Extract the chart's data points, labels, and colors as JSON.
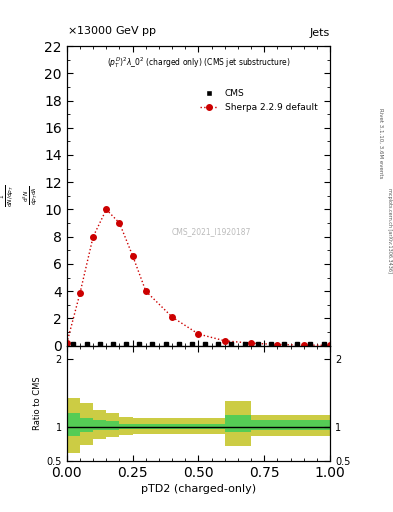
{
  "title_top": "13000 GeV pp",
  "title_right": "Jets",
  "plot_title": "$(p_T^D)^2\\lambda\\_0^2$ (charged only) (CMS jet substructure)",
  "xlabel": "pTD2 (charged-only)",
  "ylabel_main_lines": [
    "mathrm d^2N",
    "mathrm d p_T mathrm d lambda",
    "",
    "1",
    "mathrm d N / mathrm d p_T"
  ],
  "ylabel_ratio": "Ratio to CMS",
  "right_label_top": "Rivet 3.1.10, 3.6M events",
  "right_label_bot": "mcplots.cern.ch [arXiv:1306.3436]",
  "watermark": "CMS_2021_I1920187",
  "cms_label": "CMS",
  "sherpa_label": "Sherpa 2.2.9 default",
  "main_xlim": [
    0.0,
    1.0
  ],
  "main_ylim": [
    0,
    22
  ],
  "main_yticks": [
    0,
    2,
    4,
    6,
    8,
    10,
    12,
    14,
    16,
    18,
    20,
    22
  ],
  "ratio_xlim": [
    0.0,
    1.0
  ],
  "ratio_ylim": [
    0.5,
    2.2
  ],
  "ratio_yticks": [
    0.5,
    1.0,
    2.0
  ],
  "xticks": [
    0.0,
    0.25,
    0.5,
    0.75,
    1.0
  ],
  "sherpa_x": [
    0.0,
    0.05,
    0.1,
    0.15,
    0.2,
    0.25,
    0.3,
    0.4,
    0.5,
    0.6,
    0.7,
    0.8,
    0.9,
    1.0
  ],
  "sherpa_y": [
    0.18,
    3.85,
    8.0,
    10.0,
    9.0,
    6.6,
    4.0,
    2.1,
    0.85,
    0.35,
    0.18,
    0.08,
    0.04,
    0.02
  ],
  "cms_x": [
    0.025,
    0.075,
    0.125,
    0.175,
    0.225,
    0.275,
    0.325,
    0.375,
    0.425,
    0.475,
    0.525,
    0.575,
    0.625,
    0.675,
    0.725,
    0.775,
    0.825,
    0.875,
    0.925,
    0.975
  ],
  "cms_y": [
    0.12,
    0.12,
    0.12,
    0.12,
    0.12,
    0.12,
    0.12,
    0.12,
    0.12,
    0.12,
    0.12,
    0.12,
    0.12,
    0.12,
    0.12,
    0.12,
    0.12,
    0.12,
    0.12,
    0.12
  ],
  "ratio_band_edges": [
    0.0,
    0.05,
    0.1,
    0.15,
    0.2,
    0.25,
    0.3,
    0.35,
    0.4,
    0.45,
    0.5,
    0.55,
    0.6,
    0.65,
    0.7,
    0.75,
    0.8,
    0.85,
    0.9,
    0.95,
    1.0
  ],
  "ratio_green_low": [
    0.87,
    0.93,
    0.95,
    0.96,
    0.97,
    0.97,
    0.97,
    0.97,
    0.97,
    0.97,
    0.97,
    0.97,
    0.92,
    0.92,
    0.95,
    0.95,
    0.95,
    0.95,
    0.95,
    0.95
  ],
  "ratio_green_high": [
    1.2,
    1.13,
    1.1,
    1.08,
    1.05,
    1.05,
    1.05,
    1.05,
    1.05,
    1.05,
    1.05,
    1.05,
    1.18,
    1.18,
    1.1,
    1.1,
    1.1,
    1.1,
    1.1,
    1.1
  ],
  "ratio_yellow_low": [
    0.62,
    0.73,
    0.82,
    0.85,
    0.88,
    0.9,
    0.9,
    0.9,
    0.9,
    0.9,
    0.9,
    0.9,
    0.72,
    0.72,
    0.87,
    0.87,
    0.87,
    0.87,
    0.87,
    0.87
  ],
  "ratio_yellow_high": [
    1.42,
    1.35,
    1.25,
    1.2,
    1.15,
    1.13,
    1.13,
    1.13,
    1.13,
    1.13,
    1.13,
    1.13,
    1.38,
    1.38,
    1.18,
    1.18,
    1.18,
    1.18,
    1.18,
    1.18
  ],
  "sherpa_color": "#cc0000",
  "cms_color": "#000000",
  "green_color": "#55cc55",
  "yellow_color": "#cccc44",
  "bg_color": "#ffffff"
}
